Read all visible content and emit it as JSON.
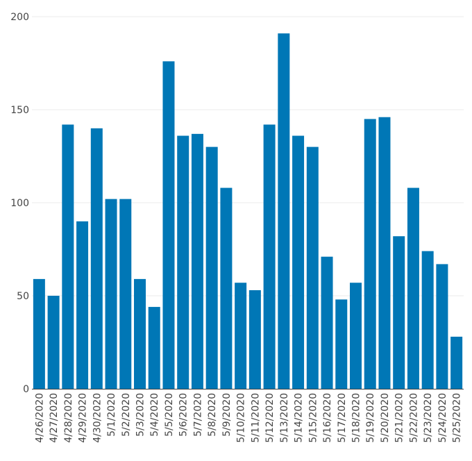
{
  "chart_data": {
    "type": "bar",
    "categories": [
      "4/26/2020",
      "4/27/2020",
      "4/28/2020",
      "4/29/2020",
      "4/30/2020",
      "5/1/2020",
      "5/2/2020",
      "5/3/2020",
      "5/4/2020",
      "5/5/2020",
      "5/6/2020",
      "5/7/2020",
      "5/8/2020",
      "5/9/2020",
      "5/10/2020",
      "5/11/2020",
      "5/12/2020",
      "5/13/2020",
      "5/14/2020",
      "5/15/2020",
      "5/16/2020",
      "5/17/2020",
      "5/18/2020",
      "5/19/2020",
      "5/20/2020",
      "5/21/2020",
      "5/22/2020",
      "5/23/2020",
      "5/24/2020",
      "5/25/2020"
    ],
    "values": [
      59,
      50,
      142,
      90,
      140,
      102,
      102,
      59,
      44,
      176,
      136,
      137,
      130,
      108,
      57,
      53,
      142,
      191,
      136,
      130,
      71,
      48,
      57,
      145,
      146,
      82,
      108,
      74,
      67,
      28
    ],
    "title": "",
    "xlabel": "",
    "ylabel": "",
    "ylim": [
      0,
      200
    ],
    "yticks": [
      0,
      50,
      100,
      150,
      200
    ],
    "grid": true,
    "bar_color": "#0077b6"
  }
}
